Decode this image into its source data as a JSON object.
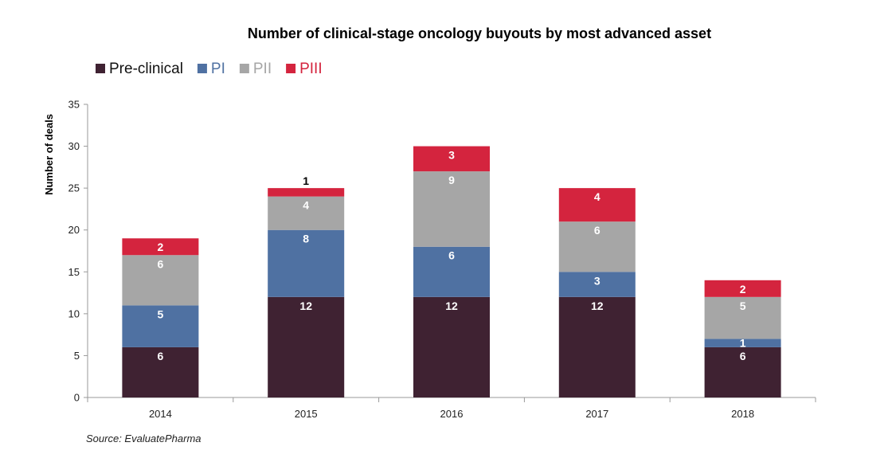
{
  "chart_data": {
    "type": "bar",
    "stacked": true,
    "title": "Number of clinical-stage oncology buyouts by most advanced asset",
    "ylabel": "Number of deals",
    "xlabel": "",
    "ylim": [
      0,
      35
    ],
    "yticks": [
      0,
      5,
      10,
      15,
      20,
      25,
      30,
      35
    ],
    "categories": [
      "2014",
      "2015",
      "2016",
      "2017",
      "2018"
    ],
    "series": [
      {
        "name": "Pre-clinical",
        "color": "#3f2232",
        "values": [
          6,
          12,
          12,
          12,
          6
        ]
      },
      {
        "name": "PI",
        "color": "#4f71a2",
        "values": [
          5,
          8,
          6,
          3,
          1
        ]
      },
      {
        "name": "PII",
        "color": "#a6a6a6",
        "values": [
          6,
          4,
          9,
          6,
          5
        ]
      },
      {
        "name": "PIII",
        "color": "#d4243e",
        "values": [
          2,
          1,
          3,
          4,
          2
        ]
      }
    ],
    "grid": false,
    "legend_position": "top-left"
  },
  "source": "Source: EvaluatePharma"
}
